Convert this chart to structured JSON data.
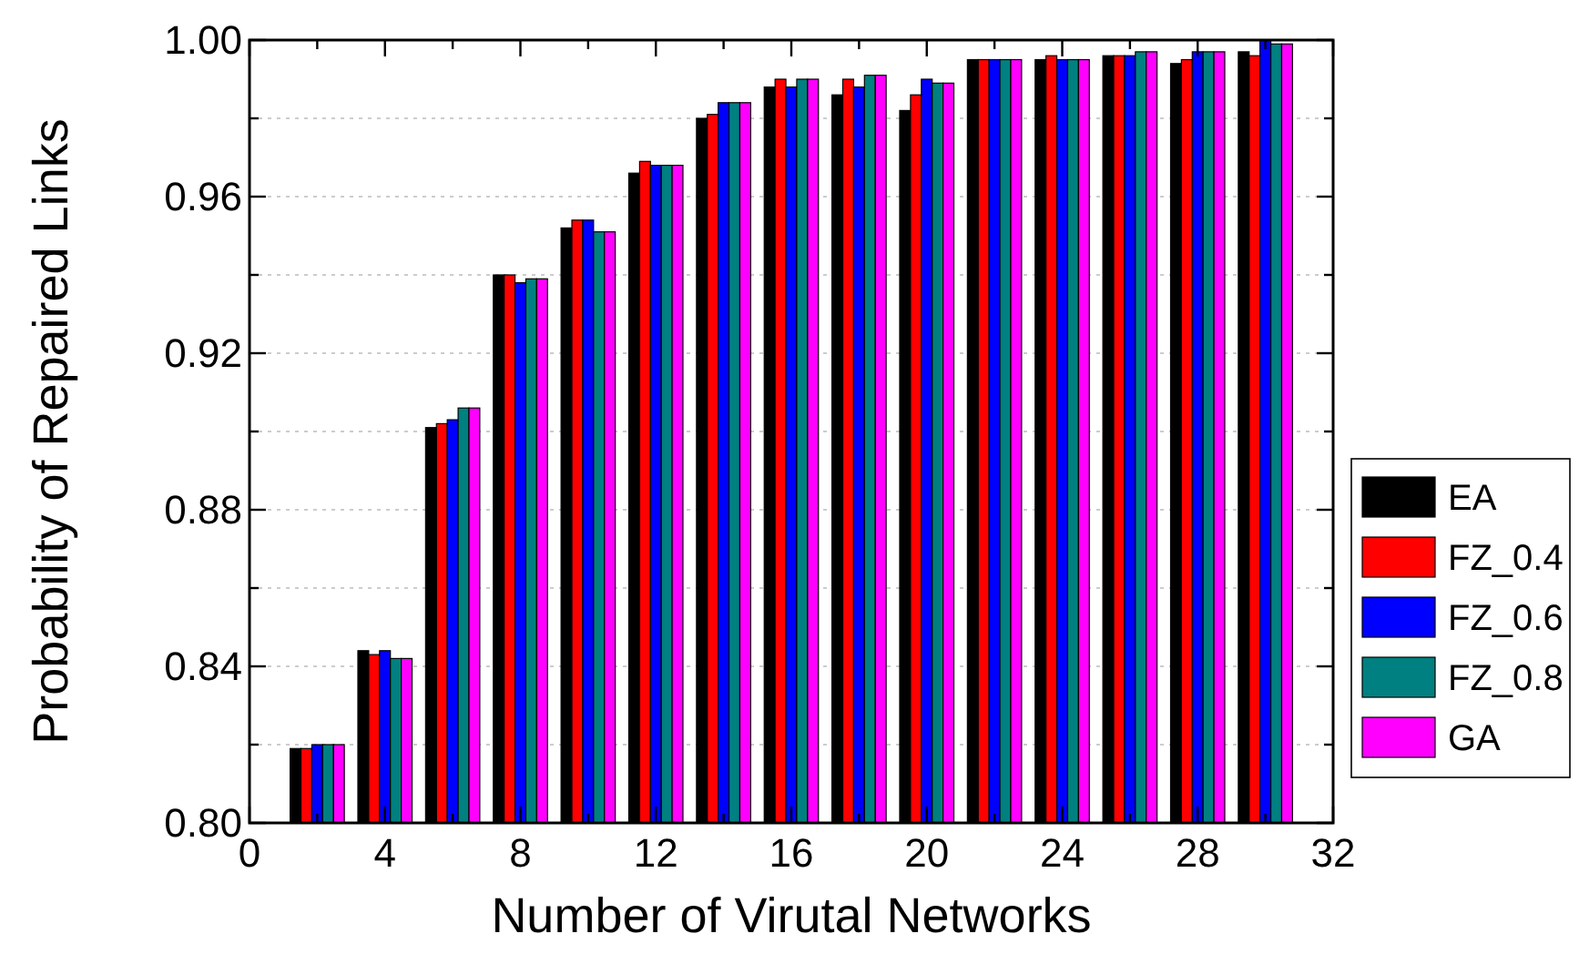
{
  "chart_data": {
    "type": "bar",
    "xlabel": "Number of Virutal Networks",
    "ylabel": "Probability of Repaired Links",
    "x": [
      2,
      4,
      6,
      8,
      10,
      12,
      14,
      16,
      18,
      20,
      22,
      24,
      26,
      28,
      30
    ],
    "series": [
      {
        "name": "EA",
        "color": "#000000",
        "values": [
          0.819,
          0.844,
          0.901,
          0.94,
          0.952,
          0.966,
          0.98,
          0.988,
          0.986,
          0.982,
          0.995,
          0.995,
          0.996,
          0.994,
          0.997
        ]
      },
      {
        "name": "FZ_0.4",
        "color": "#ff0000",
        "values": [
          0.819,
          0.843,
          0.902,
          0.94,
          0.954,
          0.969,
          0.981,
          0.99,
          0.99,
          0.986,
          0.995,
          0.996,
          0.996,
          0.995,
          0.996
        ]
      },
      {
        "name": "FZ_0.6",
        "color": "#0000ff",
        "values": [
          0.82,
          0.844,
          0.903,
          0.938,
          0.954,
          0.968,
          0.984,
          0.988,
          0.988,
          0.99,
          0.995,
          0.995,
          0.996,
          0.997,
          1.0
        ]
      },
      {
        "name": "FZ_0.8",
        "color": "#008080",
        "values": [
          0.82,
          0.842,
          0.906,
          0.939,
          0.951,
          0.968,
          0.984,
          0.99,
          0.991,
          0.989,
          0.995,
          0.995,
          0.997,
          0.997,
          0.999
        ]
      },
      {
        "name": "GA",
        "color": "#ff00ff",
        "values": [
          0.82,
          0.842,
          0.906,
          0.939,
          0.951,
          0.968,
          0.984,
          0.99,
          0.991,
          0.989,
          0.995,
          0.995,
          0.997,
          0.997,
          0.999
        ]
      }
    ],
    "xlim": [
      0,
      32
    ],
    "xticks": [
      0,
      {
        "value": 2,
        "label": null
      },
      4,
      {
        "value": 6,
        "label": null
      },
      8,
      {
        "value": 10,
        "label": null
      },
      12,
      {
        "value": 14,
        "label": null
      },
      16,
      {
        "value": 18,
        "label": null
      },
      20,
      {
        "value": 22,
        "label": null
      },
      24,
      {
        "value": 26,
        "label": null
      },
      28,
      {
        "value": 30,
        "label": null
      },
      32
    ],
    "ylim": [
      0.8,
      1.0
    ],
    "yticks": [
      {
        "value": 0.8,
        "label": "0.80"
      },
      {
        "value": 0.82,
        "label": null
      },
      0.84,
      {
        "value": 0.86,
        "label": null
      },
      0.88,
      {
        "value": 0.9,
        "label": null
      },
      0.92,
      {
        "value": 0.94,
        "label": null
      },
      0.96,
      {
        "value": 0.98,
        "label": null
      },
      {
        "value": 1.0,
        "label": "1.00"
      }
    ],
    "grid": "y",
    "legend": "right"
  }
}
